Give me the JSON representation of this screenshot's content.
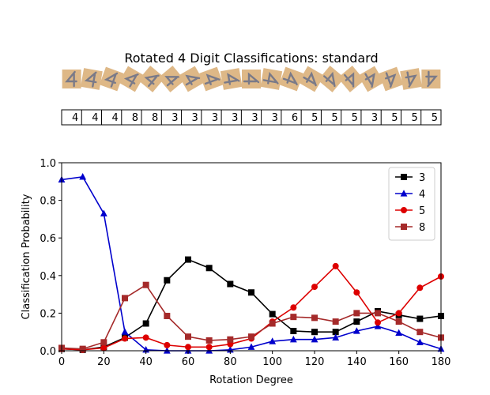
{
  "chart_data": {
    "type": "line",
    "title": "Rotated 4 Digit Classifications: standard",
    "xlabel": "Rotation Degree",
    "ylabel": "Classification Probability",
    "xlim": [
      0,
      180
    ],
    "ylim": [
      0,
      1.0
    ],
    "xticks": [
      "0",
      "20",
      "40",
      "60",
      "80",
      "100",
      "120",
      "140",
      "160",
      "180"
    ],
    "yticks": [
      "0.0",
      "0.2",
      "0.4",
      "0.6",
      "0.8",
      "1.0"
    ],
    "grid": false,
    "legend_position": "top-right",
    "x": [
      0,
      10,
      20,
      30,
      40,
      50,
      60,
      70,
      80,
      90,
      100,
      110,
      120,
      130,
      140,
      150,
      160,
      170,
      180
    ],
    "predicted_labels": [
      "4",
      "4",
      "4",
      "8",
      "8",
      "3",
      "3",
      "3",
      "3",
      "3",
      "3",
      "6",
      "5",
      "5",
      "5",
      "3",
      "5",
      "5",
      "5"
    ],
    "series": [
      {
        "name": "3",
        "color": "#000000",
        "marker": "square",
        "values": [
          0.01,
          0.005,
          0.02,
          0.07,
          0.145,
          0.375,
          0.485,
          0.44,
          0.355,
          0.31,
          0.195,
          0.105,
          0.1,
          0.1,
          0.155,
          0.21,
          0.19,
          0.17,
          0.185
        ]
      },
      {
        "name": "4",
        "color": "#0000cc",
        "marker": "triangle",
        "values": [
          0.91,
          0.925,
          0.73,
          0.1,
          0.005,
          0.0,
          0.0,
          0.0,
          0.005,
          0.02,
          0.05,
          0.06,
          0.06,
          0.07,
          0.105,
          0.13,
          0.095,
          0.045,
          0.01
        ]
      },
      {
        "name": "5",
        "color": "#dd0000",
        "marker": "circle",
        "values": [
          0.01,
          0.005,
          0.015,
          0.065,
          0.07,
          0.03,
          0.02,
          0.02,
          0.035,
          0.065,
          0.155,
          0.23,
          0.34,
          0.45,
          0.31,
          0.15,
          0.2,
          0.335,
          0.395
        ]
      },
      {
        "name": "8",
        "color": "#a52a2a",
        "marker": "square",
        "values": [
          0.015,
          0.01,
          0.045,
          0.28,
          0.35,
          0.185,
          0.075,
          0.055,
          0.06,
          0.075,
          0.145,
          0.18,
          0.175,
          0.155,
          0.2,
          0.2,
          0.155,
          0.1,
          0.07
        ]
      }
    ],
    "thumbnail_color": "#deb887"
  }
}
